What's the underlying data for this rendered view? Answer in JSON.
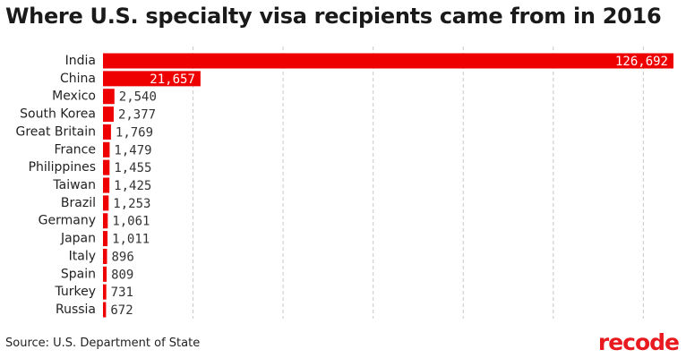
{
  "colors": {
    "bar": "#ee0000",
    "grid": "#c8c8c8",
    "brand": "#e8191f"
  },
  "chart_data": {
    "type": "bar",
    "orientation": "horizontal",
    "title": "Where U.S. specialty visa recipients came from in 2016",
    "categories": [
      "India",
      "China",
      "Mexico",
      "South Korea",
      "Great Britain",
      "France",
      "Philippines",
      "Taiwan",
      "Brazil",
      "Germany",
      "Japan",
      "Italy",
      "Spain",
      "Turkey",
      "Russia"
    ],
    "values": [
      126692,
      21657,
      2540,
      2377,
      1769,
      1479,
      1455,
      1425,
      1253,
      1061,
      1011,
      896,
      809,
      731,
      672
    ],
    "value_labels": [
      "126,692",
      "21,657",
      "2,540",
      "2,377",
      "1,769",
      "1,479",
      "1,455",
      "1,425",
      "1,253",
      "1,061",
      "1,011",
      "896",
      "809",
      "731",
      "672"
    ],
    "xlim": [
      0,
      126692
    ],
    "gridlines": [
      20000,
      40000,
      60000,
      80000,
      100000,
      120000
    ],
    "grid": true,
    "legend": "none"
  },
  "footer": {
    "source": "Source: U.S. Department of State",
    "logo": "recode"
  }
}
